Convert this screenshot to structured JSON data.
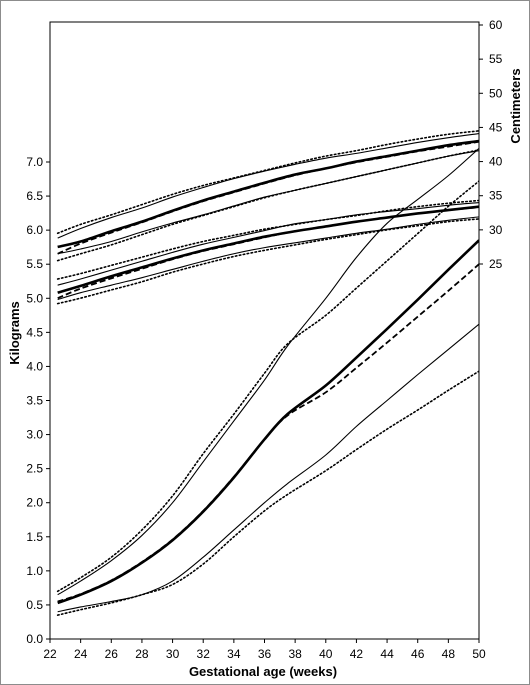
{
  "chart_data": {
    "type": "line",
    "title": "",
    "xlabel": "Gestational age (weeks)",
    "ylabel_left": "Kilograms",
    "ylabel_right": "Centimeters",
    "xlim": [
      22,
      50
    ],
    "ylim_left": [
      0,
      9
    ],
    "ylim_right": [
      16,
      60
    ],
    "x_ticks": [
      22,
      24,
      26,
      28,
      30,
      32,
      34,
      36,
      38,
      40,
      42,
      44,
      46,
      48,
      50
    ],
    "y_left_ticks": [
      "0.0",
      "0.5",
      "1.0",
      "1.5",
      "2.0",
      "2.5",
      "3.0",
      "3.5",
      "4.0",
      "4.5",
      "5.0",
      "5.5",
      "6.0",
      "6.5",
      "7.0"
    ],
    "y_right_ticks": [
      "25",
      "30",
      "35",
      "40",
      "45",
      "50",
      "55",
      "60"
    ],
    "grid": false,
    "series": [
      {
        "group": "weight",
        "style": "solid-thick",
        "axis": "left",
        "x": [
          22.5,
          24,
          26,
          28,
          30,
          32,
          34,
          36,
          37.5,
          40,
          42,
          44,
          46,
          48,
          50
        ],
        "y": [
          0.53,
          0.65,
          0.85,
          1.12,
          1.45,
          1.87,
          2.37,
          2.93,
          3.3,
          3.72,
          4.13,
          4.55,
          4.98,
          5.42,
          5.85
        ]
      },
      {
        "group": "weight",
        "style": "solid-thin",
        "axis": "left",
        "x": [
          22.5,
          24,
          26,
          28,
          30,
          32,
          34,
          36,
          37.5,
          40,
          42,
          44,
          46,
          48,
          50
        ],
        "y": [
          0.65,
          0.85,
          1.15,
          1.52,
          2.0,
          2.6,
          3.2,
          3.8,
          4.3,
          5.0,
          5.6,
          6.1,
          6.45,
          6.8,
          7.2
        ]
      },
      {
        "group": "weight",
        "style": "dotted",
        "axis": "left",
        "x": [
          22.5,
          24,
          26,
          28,
          30,
          32,
          34,
          36,
          37.5,
          40,
          42,
          44,
          46,
          48,
          50
        ],
        "y": [
          0.7,
          0.9,
          1.2,
          1.6,
          2.1,
          2.72,
          3.3,
          3.9,
          4.33,
          4.75,
          5.15,
          5.55,
          5.95,
          6.35,
          6.72
        ]
      },
      {
        "group": "weight",
        "style": "solid-thin",
        "axis": "left",
        "x": [
          22.5,
          24,
          26,
          28,
          30,
          32,
          34,
          36,
          37.5,
          40,
          42,
          44,
          46,
          48,
          50
        ],
        "y": [
          0.4,
          0.47,
          0.55,
          0.65,
          0.85,
          1.2,
          1.6,
          2.0,
          2.28,
          2.7,
          3.12,
          3.5,
          3.88,
          4.25,
          4.62
        ]
      },
      {
        "group": "weight",
        "style": "dotted",
        "axis": "left",
        "x": [
          22.5,
          24,
          26,
          28,
          30,
          32,
          34,
          36,
          37.5,
          40,
          42,
          44,
          46,
          48,
          50
        ],
        "y": [
          0.35,
          0.43,
          0.53,
          0.65,
          0.8,
          1.1,
          1.5,
          1.88,
          2.12,
          2.47,
          2.78,
          3.08,
          3.36,
          3.65,
          3.93
        ]
      },
      {
        "group": "weight",
        "style": "dashed",
        "axis": "left",
        "x": [
          22.5,
          24,
          26,
          28,
          30,
          32,
          34,
          36,
          37.5,
          40,
          42,
          44,
          46,
          48,
          50
        ],
        "y": [
          0.55,
          0.66,
          0.86,
          1.13,
          1.46,
          1.88,
          2.38,
          2.93,
          3.28,
          3.62,
          3.98,
          4.35,
          4.73,
          5.11,
          5.5
        ]
      },
      {
        "group": "length",
        "style": "solid-thick",
        "axis": "right",
        "x": [
          22.5,
          24,
          26,
          28,
          30,
          32,
          34,
          36,
          38,
          40,
          42,
          44,
          46,
          48,
          50
        ],
        "y": [
          27.5,
          28.3,
          29.8,
          31.2,
          32.8,
          34.3,
          35.6,
          36.9,
          38.1,
          39.0,
          40.0,
          40.8,
          41.6,
          42.4,
          43.0
        ]
      },
      {
        "group": "length",
        "style": "solid-thin",
        "axis": "right",
        "x": [
          22.5,
          24,
          26,
          28,
          30,
          32,
          34,
          36,
          38,
          40,
          42,
          44,
          46,
          48,
          50
        ],
        "y": [
          28.8,
          30.2,
          31.8,
          33.2,
          34.8,
          36.2,
          37.5,
          38.6,
          39.6,
          40.5,
          41.2,
          42.0,
          42.8,
          43.5,
          44.1
        ]
      },
      {
        "group": "length",
        "style": "dotted",
        "axis": "right",
        "x": [
          22.5,
          24,
          26,
          28,
          30,
          32,
          34,
          36,
          38,
          40,
          42,
          44,
          46,
          48,
          50
        ],
        "y": [
          29.5,
          30.8,
          32.2,
          33.7,
          35.2,
          36.5,
          37.6,
          38.7,
          39.8,
          40.8,
          41.6,
          42.5,
          43.3,
          44.0,
          44.5
        ]
      },
      {
        "group": "length",
        "style": "solid-thin",
        "axis": "right",
        "x": [
          22.5,
          24,
          26,
          28,
          30,
          32,
          34,
          36,
          38,
          40,
          42,
          44,
          46,
          48,
          50
        ],
        "y": [
          26.5,
          27.2,
          28.3,
          29.7,
          31.0,
          32.2,
          33.5,
          34.8,
          35.8,
          36.8,
          37.8,
          38.8,
          39.8,
          40.8,
          41.6
        ]
      },
      {
        "group": "length",
        "style": "dotted",
        "axis": "right",
        "x": [
          22.5,
          24,
          26,
          28,
          30,
          32,
          34,
          36,
          38,
          40,
          42,
          44,
          46,
          48,
          50
        ],
        "y": [
          25.5,
          26.5,
          27.8,
          29.3,
          30.8,
          32.1,
          33.4,
          34.7,
          35.8,
          36.8,
          37.8,
          38.8,
          39.8,
          40.8,
          41.7
        ]
      },
      {
        "group": "length",
        "style": "dashed",
        "axis": "right",
        "x": [
          22.5,
          24,
          26,
          28,
          30,
          32,
          34,
          36,
          38,
          40,
          42,
          44,
          46,
          48,
          50
        ],
        "y": [
          26.5,
          28.0,
          29.6,
          31.1,
          32.7,
          34.2,
          35.5,
          36.8,
          38.0,
          39.0,
          39.9,
          40.7,
          41.5,
          42.2,
          42.9
        ]
      },
      {
        "group": "head",
        "style": "solid-thick",
        "axis": "right",
        "x": [
          22.5,
          24,
          26,
          28,
          30,
          32,
          34,
          36,
          38,
          40,
          42,
          44,
          46,
          48,
          50
        ],
        "y": [
          20.8,
          21.8,
          23.2,
          24.5,
          25.8,
          27.0,
          28.0,
          29.0,
          29.8,
          30.5,
          31.2,
          31.8,
          32.4,
          32.9,
          33.4
        ]
      },
      {
        "group": "head",
        "style": "solid-thin",
        "axis": "right",
        "x": [
          22.5,
          24,
          26,
          28,
          30,
          32,
          34,
          36,
          38,
          40,
          42,
          44,
          46,
          48,
          50
        ],
        "y": [
          21.9,
          22.8,
          24.1,
          25.4,
          26.7,
          27.9,
          28.9,
          29.9,
          30.9,
          31.5,
          32.2,
          32.7,
          33.1,
          33.6,
          34.0
        ]
      },
      {
        "group": "head",
        "style": "dotted",
        "axis": "right",
        "x": [
          22.5,
          24,
          26,
          28,
          30,
          32,
          34,
          36,
          38,
          40,
          42,
          44,
          46,
          48,
          50
        ],
        "y": [
          22.8,
          23.6,
          24.8,
          26.0,
          27.2,
          28.3,
          29.2,
          30.1,
          30.8,
          31.5,
          32.1,
          32.8,
          33.4,
          33.9,
          34.3
        ]
      },
      {
        "group": "head",
        "style": "solid-thin",
        "axis": "right",
        "x": [
          22.5,
          24,
          26,
          28,
          30,
          32,
          34,
          36,
          38,
          40,
          42,
          44,
          46,
          48,
          50
        ],
        "y": [
          19.8,
          20.8,
          21.9,
          23.0,
          24.2,
          25.4,
          26.5,
          27.4,
          28.1,
          28.8,
          29.5,
          30.1,
          30.8,
          31.4,
          31.9
        ]
      },
      {
        "group": "head",
        "style": "dotted",
        "axis": "right",
        "x": [
          22.5,
          24,
          26,
          28,
          30,
          32,
          34,
          36,
          38,
          40,
          42,
          44,
          46,
          48,
          50
        ],
        "y": [
          19.2,
          20.0,
          21.2,
          22.4,
          23.8,
          25.0,
          26.1,
          27.0,
          27.8,
          28.6,
          29.3,
          30.0,
          30.6,
          31.2,
          31.6
        ]
      },
      {
        "group": "head",
        "style": "dashed",
        "axis": "right",
        "x": [
          22.5,
          24,
          26,
          28,
          30,
          32,
          34,
          36,
          38,
          40,
          42,
          44,
          46,
          48,
          50
        ],
        "y": [
          20.0,
          21.4,
          22.9,
          24.3,
          25.7,
          26.9,
          27.9,
          28.9,
          29.8,
          30.5,
          31.2,
          31.8,
          32.4,
          32.9,
          33.3
        ]
      }
    ]
  }
}
